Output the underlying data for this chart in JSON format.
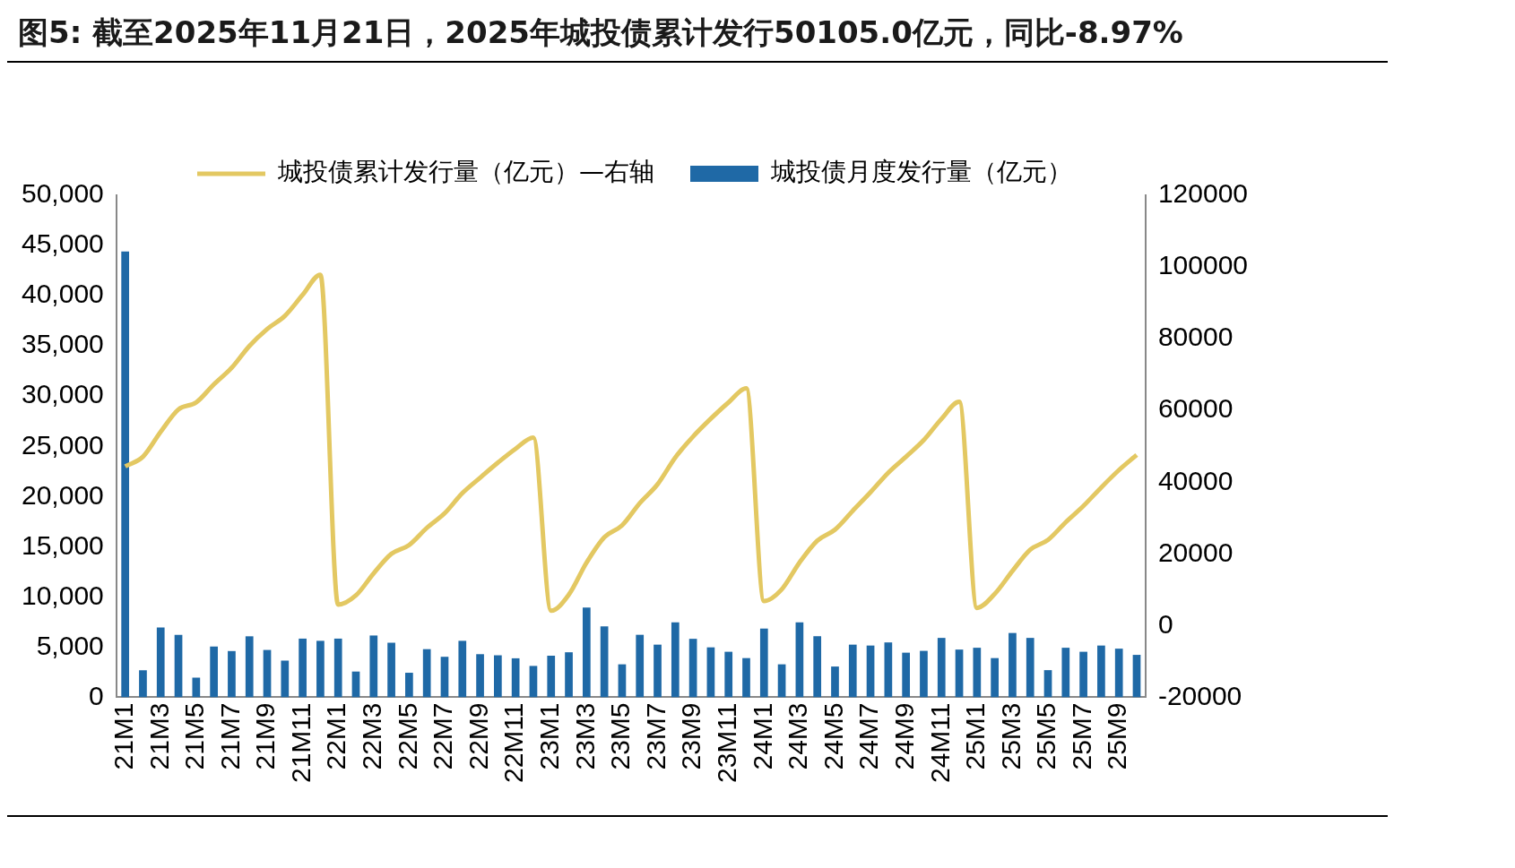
{
  "chart_data": {
    "type": "bar",
    "title": "图5: 截至2025年11月21日，2025年城投债累计发行50105.0亿元，同比-8.97%",
    "categories": [
      "21M1",
      null,
      "21M3",
      null,
      "21M5",
      null,
      "21M7",
      null,
      "21M9",
      null,
      "21M11",
      null,
      "22M1",
      null,
      "22M3",
      null,
      "22M5",
      null,
      "22M7",
      null,
      "22M9",
      null,
      "22M11",
      null,
      "23M1",
      null,
      "23M3",
      null,
      "23M5",
      null,
      "23M7",
      null,
      "23M9",
      null,
      "23M11",
      null,
      "24M1",
      null,
      "24M3",
      null,
      "24M5",
      null,
      "24M7",
      null,
      "24M9",
      null,
      "24M11",
      null,
      "25M1",
      null,
      "25M3",
      null,
      "25M5",
      null,
      "25M7",
      null,
      "25M9",
      null
    ],
    "series": [
      {
        "name": "城投债月度发行量（亿元）",
        "color": "#1f69a6",
        "values": [
          44400,
          2700,
          6950,
          6230,
          1960,
          5060,
          4610,
          6080,
          4720,
          3660,
          5850,
          5630,
          5850,
          2570,
          6160,
          5440,
          2450,
          4800,
          4040,
          5630,
          4300,
          4190,
          3890,
          3130,
          4150,
          4490,
          8940,
          7070,
          3290,
          6230,
          5250,
          7470,
          5830,
          4980,
          4540,
          3910,
          6850,
          3290,
          7470,
          6090,
          3070,
          5250,
          5160,
          5470,
          4450,
          4630,
          5920,
          4760,
          4940,
          3910,
          6410,
          5920,
          2710,
          4940,
          4540,
          5160,
          4850,
          4230
        ]
      },
      {
        "name": "城投债累计发行量（亿元）—右轴",
        "type": "line",
        "axis": "y2",
        "color": "#e3c862",
        "values": [
          44400,
          47100,
          54050,
          60280,
          62240,
          67300,
          71910,
          77990,
          82710,
          86370,
          92220,
          97850,
          5850,
          8420,
          14580,
          20020,
          22470,
          27270,
          31310,
          36940,
          41240,
          45430,
          49320,
          52450,
          4150,
          8640,
          17580,
          24650,
          27940,
          34170,
          39420,
          46890,
          52720,
          57700,
          62240,
          66150,
          6850,
          10140,
          17610,
          23700,
          26770,
          32020,
          37180,
          42650,
          47100,
          51730,
          57650,
          62410,
          4940,
          8850,
          15260,
          21180,
          23890,
          28830,
          33370,
          38530,
          43380,
          47610
        ]
      }
    ],
    "ylim": [
      0,
      50000
    ],
    "yticks": [
      {
        "value": 0,
        "label": "0"
      },
      {
        "value": 5000,
        "label": "5,000"
      },
      {
        "value": 10000,
        "label": "10,000"
      },
      {
        "value": 15000,
        "label": "15,000"
      },
      {
        "value": 20000,
        "label": "20,000"
      },
      {
        "value": 25000,
        "label": "25,000"
      },
      {
        "value": 30000,
        "label": "30,000"
      },
      {
        "value": 35000,
        "label": "35,000"
      },
      {
        "value": 40000,
        "label": "40,000"
      },
      {
        "value": 45000,
        "label": "45,000"
      },
      {
        "value": 50000,
        "label": "50,000"
      }
    ],
    "y2lim": [
      -20000,
      120000
    ],
    "y2ticks": [
      -20000,
      0,
      20000,
      40000,
      60000,
      80000,
      100000,
      120000
    ],
    "legend": "top",
    "grid": false,
    "marker": "none",
    "line_style": "solid"
  }
}
